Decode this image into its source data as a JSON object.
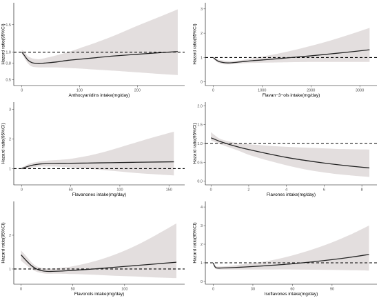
{
  "colors": {
    "ci_band": "#e3dede",
    "curve": "#222222",
    "reference_line": "#000000"
  },
  "chart_data": [
    {
      "type": "line",
      "title": "",
      "xlabel": "Anthocyanidins intake(mg/day)",
      "ylabel": "Hazard ratio(95%CI)",
      "xlim": [
        -14,
        282
      ],
      "ylim": [
        0.39,
        1.9
      ],
      "xticks": [
        0,
        100,
        200
      ],
      "yticks": [
        0.5,
        0.8,
        1.0,
        1.5
      ],
      "ytick_labels": [
        "0.5",
        "0.8",
        "1.0",
        "1.5"
      ],
      "reference_line": 1.0,
      "series": [
        {
          "x": [
            0,
            5,
            10,
            15,
            20,
            30,
            40,
            60,
            80,
            100,
            130,
            160,
            200,
            240,
            270
          ],
          "hr": [
            1.0,
            0.93,
            0.86,
            0.82,
            0.8,
            0.79,
            0.8,
            0.82,
            0.85,
            0.87,
            0.9,
            0.93,
            0.96,
            0.99,
            1.01
          ],
          "lower": [
            0.97,
            0.88,
            0.8,
            0.75,
            0.73,
            0.72,
            0.72,
            0.72,
            0.71,
            0.7,
            0.68,
            0.66,
            0.63,
            0.6,
            0.58
          ],
          "upper": [
            1.04,
            1.0,
            0.93,
            0.9,
            0.88,
            0.87,
            0.89,
            0.94,
            1.0,
            1.07,
            1.18,
            1.3,
            1.48,
            1.65,
            1.78
          ]
        }
      ]
    },
    {
      "type": "line",
      "title": "",
      "xlabel": "Flavan−3−ols intake(mg/day)",
      "ylabel": "Hazard ratio(95%CI)",
      "xlim": [
        -160,
        3350
      ],
      "ylim": [
        -0.15,
        3.25
      ],
      "xticks": [
        0,
        1000,
        2000,
        3000
      ],
      "yticks": [
        0,
        1,
        2,
        3
      ],
      "ytick_labels": [
        "0",
        "1",
        "2",
        "3"
      ],
      "reference_line": 1.0,
      "series": [
        {
          "x": [
            0,
            100,
            200,
            300,
            400,
            600,
            800,
            1000,
            1300,
            1600,
            2000,
            2400,
            2800,
            3200
          ],
          "hr": [
            1.0,
            0.85,
            0.8,
            0.78,
            0.79,
            0.83,
            0.87,
            0.9,
            0.95,
            1.0,
            1.07,
            1.15,
            1.23,
            1.32
          ],
          "lower": [
            0.96,
            0.79,
            0.73,
            0.72,
            0.73,
            0.76,
            0.78,
            0.79,
            0.8,
            0.81,
            0.82,
            0.82,
            0.82,
            0.82
          ],
          "upper": [
            1.04,
            0.92,
            0.88,
            0.86,
            0.86,
            0.9,
            0.97,
            1.04,
            1.15,
            1.28,
            1.48,
            1.7,
            1.95,
            2.22
          ]
        }
      ]
    },
    {
      "type": "line",
      "title": "",
      "xlabel": "Flavanones intake(mg/day)",
      "ylabel": "Hazard ratio(95%CI)",
      "xlim": [
        -8,
        166
      ],
      "ylim": [
        0.45,
        3.25
      ],
      "xticks": [
        0,
        50,
        100,
        150
      ],
      "yticks": [
        1,
        2,
        3
      ],
      "ytick_labels": [
        "1",
        "2",
        "3"
      ],
      "reference_line": 1.0,
      "series": [
        {
          "x": [
            0,
            5,
            10,
            15,
            20,
            30,
            40,
            50,
            70,
            90,
            110,
            130,
            155
          ],
          "hr": [
            1.0,
            1.06,
            1.11,
            1.14,
            1.16,
            1.17,
            1.18,
            1.18,
            1.19,
            1.2,
            1.21,
            1.22,
            1.23
          ],
          "lower": [
            0.97,
            1.0,
            1.03,
            1.06,
            1.07,
            1.07,
            1.06,
            1.04,
            0.99,
            0.93,
            0.87,
            0.82,
            0.77
          ],
          "upper": [
            1.03,
            1.12,
            1.19,
            1.22,
            1.25,
            1.28,
            1.3,
            1.33,
            1.45,
            1.62,
            1.82,
            2.02,
            2.25
          ]
        }
      ]
    },
    {
      "type": "line",
      "title": "",
      "xlabel": "Flavones intake(mg/day)",
      "ylabel": "Hazard ratio(95%CI)",
      "xlim": [
        -0.3,
        8.8
      ],
      "ylim": [
        -0.1,
        2.1
      ],
      "xticks": [
        0,
        2,
        4,
        6,
        8
      ],
      "yticks": [
        0.0,
        0.5,
        1.0,
        1.5,
        2.0
      ],
      "ytick_labels": [
        "0.0",
        "0.5",
        "1.0",
        "1.5",
        "2.0"
      ],
      "reference_line": 1.0,
      "series": [
        {
          "x": [
            0,
            0.25,
            0.5,
            1,
            1.5,
            2,
            3,
            4,
            5,
            6,
            7,
            8.4
          ],
          "hr": [
            1.15,
            1.1,
            1.05,
            0.97,
            0.9,
            0.84,
            0.73,
            0.63,
            0.55,
            0.48,
            0.42,
            0.35
          ],
          "lower": [
            1.08,
            1.03,
            0.98,
            0.89,
            0.8,
            0.7,
            0.55,
            0.42,
            0.31,
            0.23,
            0.17,
            0.11
          ],
          "upper": [
            1.3,
            1.2,
            1.12,
            1.05,
            1.0,
            0.98,
            0.94,
            0.91,
            0.89,
            0.87,
            0.85,
            0.84
          ]
        }
      ]
    },
    {
      "type": "line",
      "title": "",
      "xlabel": "Flavonols intake(mg/day)",
      "ylabel": "Hazard ratio(95%CI)",
      "xlim": [
        -7,
        158
      ],
      "ylim": [
        0.55,
        3.0
      ],
      "xticks": [
        0,
        50,
        100
      ],
      "yticks": [
        1,
        2
      ],
      "ytick_labels": [
        "1",
        "2"
      ],
      "reference_line": 1.0,
      "series": [
        {
          "x": [
            0,
            5,
            10,
            15,
            20,
            25,
            30,
            40,
            50,
            70,
            90,
            110,
            130,
            150
          ],
          "hr": [
            1.42,
            1.25,
            1.1,
            1.0,
            0.95,
            0.93,
            0.93,
            0.94,
            0.96,
            1.0,
            1.05,
            1.1,
            1.15,
            1.2
          ],
          "lower": [
            1.25,
            1.12,
            1.0,
            0.92,
            0.88,
            0.86,
            0.86,
            0.86,
            0.85,
            0.83,
            0.8,
            0.78,
            0.75,
            0.73
          ],
          "upper": [
            1.55,
            1.38,
            1.2,
            1.08,
            1.03,
            1.01,
            1.01,
            1.04,
            1.08,
            1.22,
            1.42,
            1.68,
            2.0,
            2.35
          ]
        }
      ]
    },
    {
      "type": "line",
      "title": "",
      "xlabel": "Isoflavones intake(mg/day)",
      "ylabel": "Hazard ratio(95%CI)",
      "xlim": [
        -6,
        124
      ],
      "ylim": [
        -0.15,
        4.3
      ],
      "xticks": [
        0,
        30,
        60,
        90
      ],
      "yticks": [
        0,
        1,
        2,
        3,
        4
      ],
      "ytick_labels": [
        "0",
        "1",
        "2",
        "3",
        "4"
      ],
      "reference_line": 1.0,
      "series": [
        {
          "x": [
            0,
            1,
            2,
            3,
            5,
            10,
            20,
            30,
            45,
            60,
            75,
            90,
            105,
            118
          ],
          "hr": [
            1.0,
            0.82,
            0.74,
            0.72,
            0.72,
            0.73,
            0.76,
            0.8,
            0.87,
            0.95,
            1.05,
            1.17,
            1.31,
            1.45
          ],
          "lower": [
            0.98,
            0.74,
            0.67,
            0.65,
            0.64,
            0.64,
            0.64,
            0.64,
            0.64,
            0.64,
            0.63,
            0.62,
            0.6,
            0.58
          ],
          "upper": [
            1.02,
            0.9,
            0.82,
            0.8,
            0.8,
            0.82,
            0.9,
            0.98,
            1.15,
            1.4,
            1.72,
            2.1,
            2.55,
            3.0
          ]
        }
      ]
    }
  ]
}
